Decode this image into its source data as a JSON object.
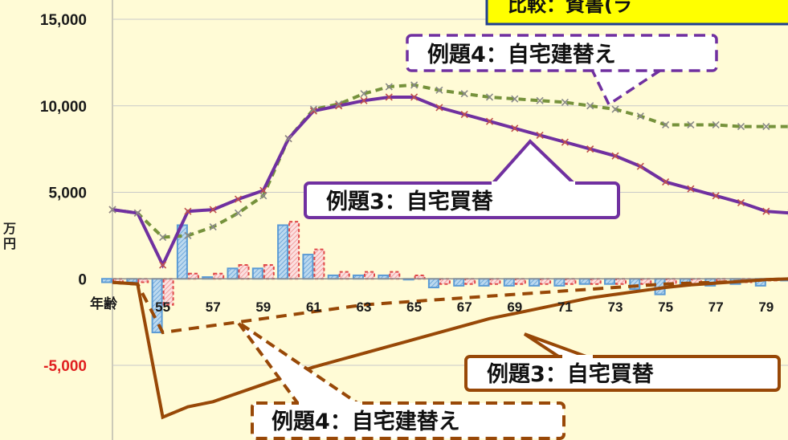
{
  "title_fragment": "比較：資書(ラ",
  "y_unit": "万円",
  "x_axis_name": "年齢",
  "callouts": {
    "purple_case4": "例題4：自宅建替え",
    "purple_case3": "例題3：自宅買替",
    "brown_case3": "例題3：自宅買替",
    "brown_case4": "例題4：自宅建替え"
  },
  "colors": {
    "background": "#fffbd6",
    "purple_line": "#7030a0",
    "cross_marker": "#c0504d",
    "dashed_green": "#76923c",
    "brown_line": "#984807",
    "bar_blue": "#5b9bd5",
    "bar_red": "#e04848",
    "negative_label": "#e02020"
  },
  "chart_data": {
    "type": "line",
    "y_ticks": [
      "15,000",
      "10,000",
      "5,000",
      "0",
      "-5,000"
    ],
    "y_tick_values": [
      15000,
      10000,
      5000,
      0,
      -5000
    ],
    "ylim": [
      -9000,
      15500
    ],
    "x_tick_labels": [
      "55",
      "57",
      "59",
      "61",
      "63",
      "65",
      "67",
      "69",
      "71",
      "73",
      "75",
      "77",
      "79"
    ],
    "ages": [
      53,
      54,
      55,
      56,
      57,
      58,
      59,
      60,
      61,
      62,
      63,
      64,
      65,
      66,
      67,
      68,
      69,
      70,
      71,
      72,
      73,
      74,
      75,
      76,
      77,
      78,
      79,
      80
    ],
    "series": [
      {
        "style": "solid purple with cross markers",
        "values": [
          4000,
          3800,
          800,
          3900,
          4000,
          4600,
          5100,
          8100,
          9700,
          10000,
          10300,
          10500,
          10500,
          9900,
          9500,
          9100,
          8700,
          8300,
          7900,
          7500,
          7100,
          6500,
          5600,
          5200,
          4800,
          4400,
          3900,
          3800
        ]
      },
      {
        "style": "dashed green with cross markers",
        "values": [
          4000,
          3800,
          2400,
          2500,
          3000,
          3800,
          4800,
          8100,
          9800,
          10100,
          10700,
          11100,
          11200,
          10900,
          10700,
          10500,
          10400,
          10300,
          10200,
          10000,
          9800,
          9400,
          8900,
          8900,
          8900,
          8800,
          8800,
          8800
        ]
      },
      {
        "style": "solid brown",
        "values": [
          -200,
          -300,
          -8000,
          -7400,
          -7100,
          -6600,
          -6100,
          -5600,
          -5100,
          -4700,
          -4300,
          -3900,
          -3500,
          -3100,
          -2700,
          -2300,
          -2000,
          -1700,
          -1400,
          -1100,
          -900,
          -700,
          -500,
          -350,
          -250,
          -150,
          -50,
          0
        ]
      },
      {
        "style": "dashed brown",
        "values": [
          -200,
          -300,
          -3100,
          -2900,
          -2700,
          -2500,
          -2300,
          -2100,
          -1900,
          -1700,
          -1500,
          -1400,
          -1300,
          -1200,
          -1100,
          -1000,
          -900,
          -800,
          -700,
          -600,
          -500,
          -400,
          -300,
          -250,
          -200,
          -150,
          -50,
          0
        ]
      },
      {
        "style": "bars blue hatched",
        "values": [
          -200,
          -200,
          -3100,
          3100,
          100,
          600,
          600,
          3100,
          1400,
          200,
          200,
          200,
          0,
          -500,
          -400,
          -400,
          -400,
          -400,
          -400,
          -300,
          -300,
          -600,
          -900,
          -400,
          -400,
          -300,
          -400,
          -100
        ]
      },
      {
        "style": "bars red dashed",
        "values": [
          -200,
          -200,
          -1500,
          300,
          300,
          800,
          800,
          3300,
          1700,
          400,
          400,
          400,
          200,
          -300,
          -300,
          -300,
          -300,
          -300,
          -300,
          -300,
          -300,
          -300,
          -300,
          -300,
          -200,
          -200,
          -100,
          -100
        ]
      }
    ]
  }
}
